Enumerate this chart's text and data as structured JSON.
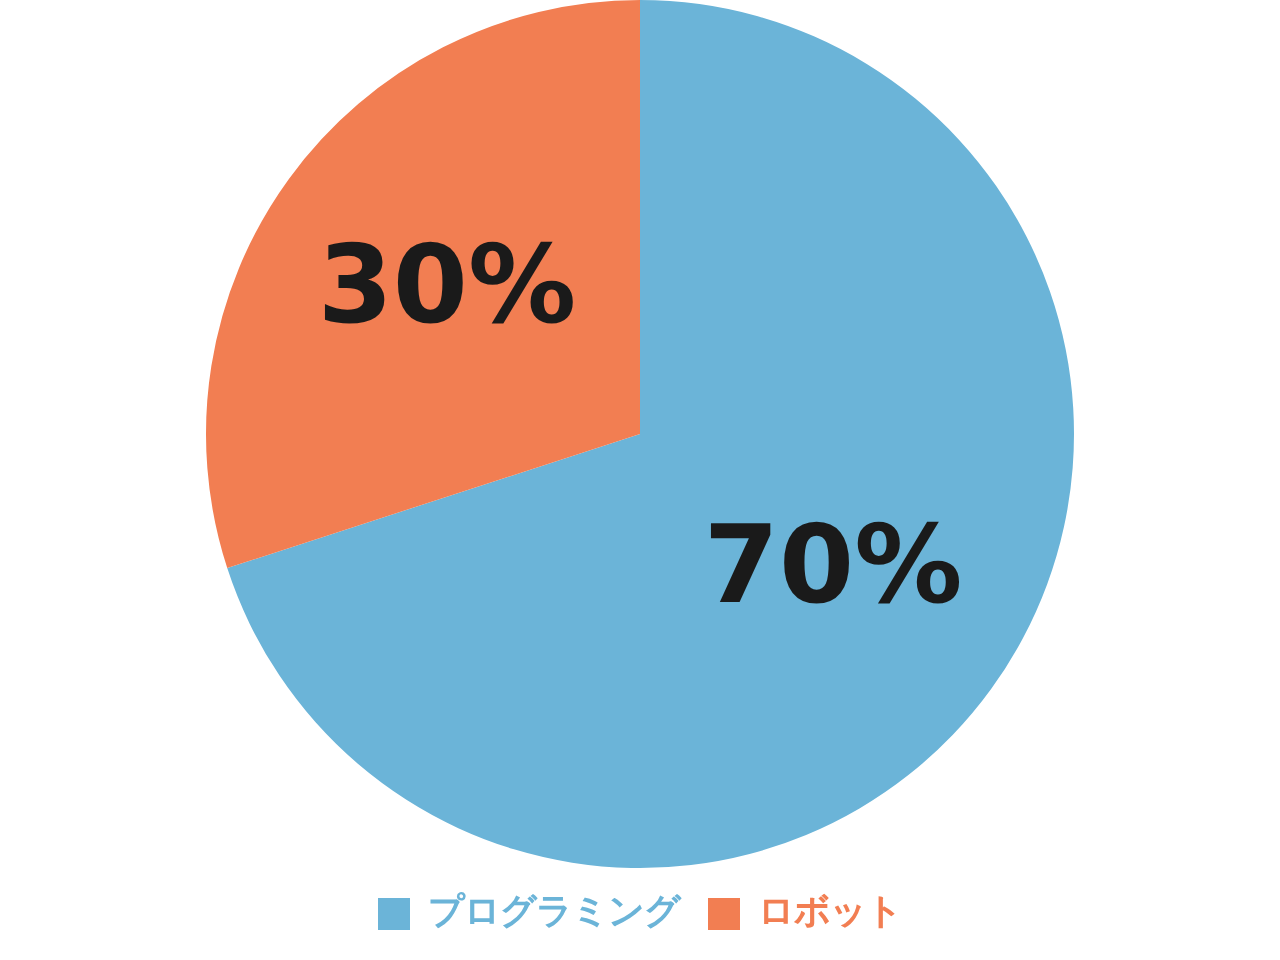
{
  "chart_data": {
    "type": "pie",
    "categories": [
      "プログラミング",
      "ロボット"
    ],
    "values": [
      70,
      30
    ],
    "colors": [
      "#6bb4d8",
      "#f27e52"
    ],
    "value_labels": [
      "70%",
      "30%"
    ],
    "legend": "bottom"
  }
}
